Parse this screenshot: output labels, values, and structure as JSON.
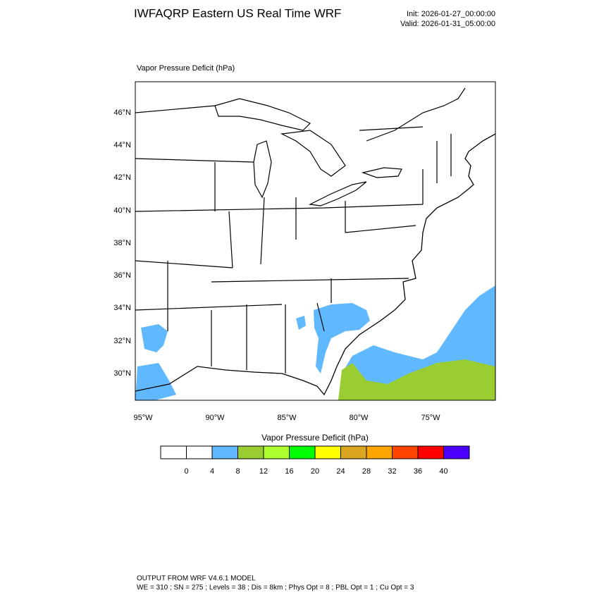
{
  "header": {
    "title": "IWFAQRP Eastern US Real Time WRF",
    "init": "Init: 2026-01-27_00:00:00",
    "valid": "Valid: 2026-01-31_05:00:00"
  },
  "map": {
    "title": "Vapor Pressure Deficit   (hPa)",
    "lat_labels": [
      "46°N",
      "44°N",
      "42°N",
      "40°N",
      "38°N",
      "36°N",
      "34°N",
      "32°N",
      "30°N"
    ],
    "lon_labels": [
      "95°W",
      "90°W",
      "85°W",
      "80°W",
      "75°W"
    ]
  },
  "colorbar": {
    "title": "Vapor Pressure Deficit  (hPa)",
    "colors": [
      "#ffffff",
      "#ffffff",
      "#60b8ff",
      "#9acd32",
      "#adff2f",
      "#00ff00",
      "#ffff00",
      "#daa520",
      "#ffa500",
      "#ff4500",
      "#ff0000",
      "#4b00ff"
    ],
    "labels": [
      0,
      4,
      8,
      12,
      16,
      20,
      24,
      28,
      32,
      36,
      40
    ]
  },
  "footer": {
    "line1": "OUTPUT FROM WRF V4.6.1 MODEL",
    "line2": "WE = 310 ; SN = 275 ; Levels = 38 ; Dis = 8km ; Phys Opt = 8 ; PBL Opt = 1 ; Cu Opt = 3"
  }
}
